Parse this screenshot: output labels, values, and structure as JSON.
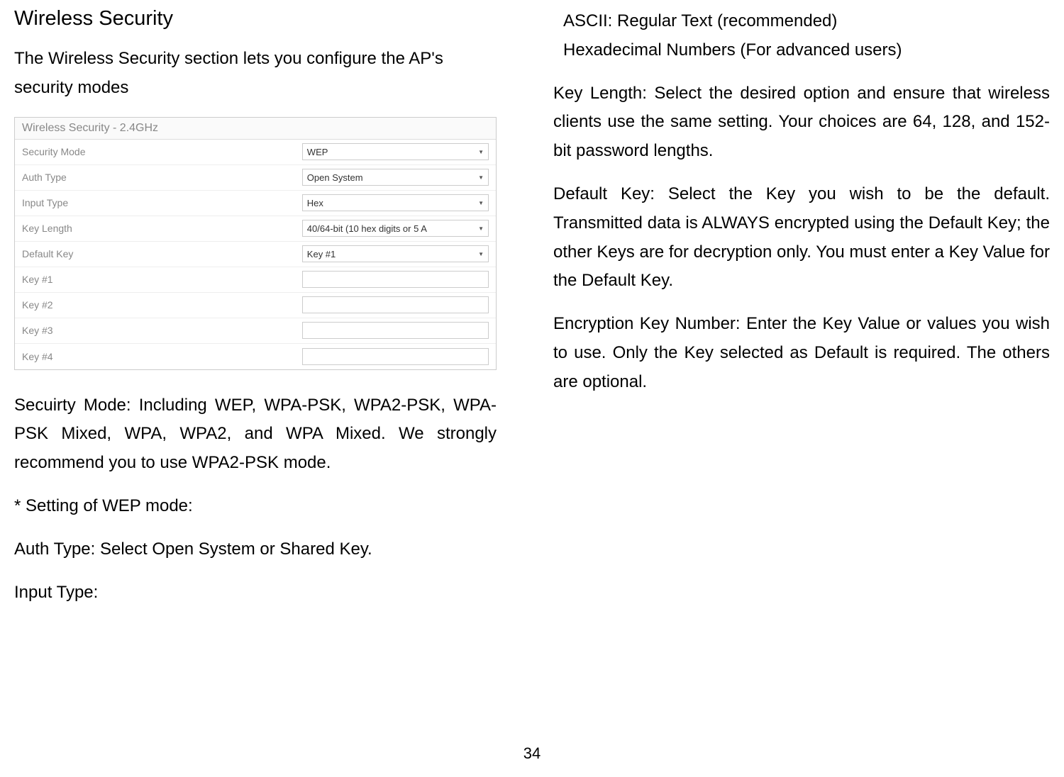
{
  "left_column": {
    "heading": "Wireless Security",
    "intro_text": "The Wireless Security section lets you configure the AP's security modes",
    "screenshot": {
      "title": "Wireless Security - 2.4GHz",
      "rows": [
        {
          "label": "Security Mode",
          "type": "select",
          "value": "WEP"
        },
        {
          "label": "Auth Type",
          "type": "select",
          "value": "Open System"
        },
        {
          "label": "Input Type",
          "type": "select",
          "value": "Hex"
        },
        {
          "label": "Key Length",
          "type": "select",
          "value": "40/64-bit (10 hex digits or 5 A"
        },
        {
          "label": "Default Key",
          "type": "select",
          "value": "Key #1"
        },
        {
          "label": "Key #1",
          "type": "input",
          "value": ""
        },
        {
          "label": "Key #2",
          "type": "input",
          "value": ""
        },
        {
          "label": "Key #3",
          "type": "input",
          "value": ""
        },
        {
          "label": "Key #4",
          "type": "input",
          "value": ""
        }
      ]
    },
    "security_mode_text": "Secuirty Mode: Including WEP, WPA-PSK, WPA2-PSK, WPA-PSK Mixed, WPA, WPA2, and WPA Mixed. We strongly recommend you to use WPA2-PSK mode.",
    "wep_heading": "* Setting of WEP mode:",
    "auth_type_text": "Auth Type: Select Open System or Shared Key.",
    "input_type_label": "Input Type:"
  },
  "right_column": {
    "ascii_text": "ASCII: Regular Text (recommended)",
    "hex_text": "Hexadecimal Numbers (For advanced users)",
    "key_length_text": "Key Length: Select the desired option and ensure that wireless clients use the same setting. Your choices are 64, 128, and 152-bit password lengths.",
    "default_key_text": "Default Key: Select the Key you wish to be the default. Transmitted data is ALWAYS encrypted using the Default Key; the other Keys are for decryption only. You must enter a Key Value for the Default Key.",
    "encryption_key_text": "Encryption Key Number: Enter the Key Value or values you wish to use. Only the Key selected as Default is required. The others are optional."
  },
  "page_number": "34"
}
